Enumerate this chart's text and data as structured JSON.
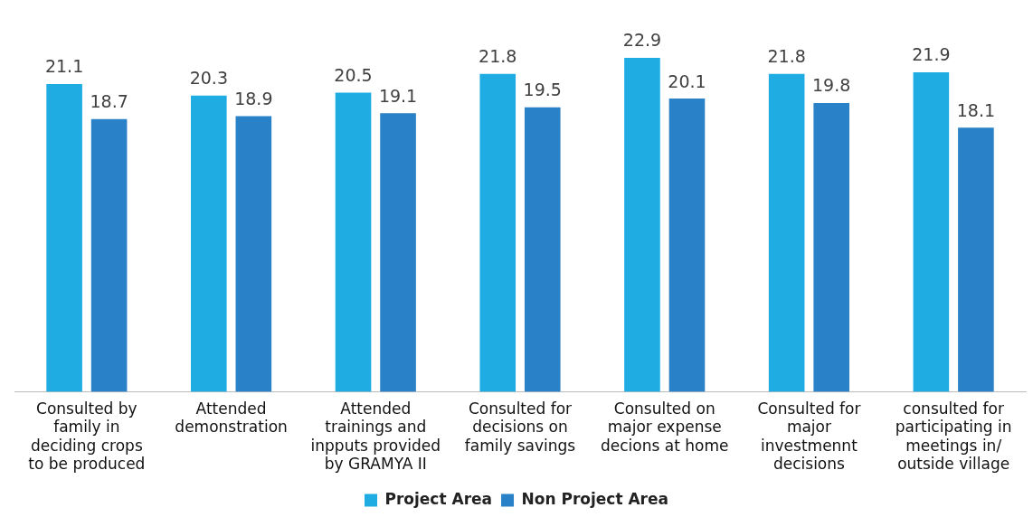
{
  "chart_data": {
    "type": "bar",
    "categories": [
      "Consulted by family in deciding crops to be produced",
      "Attended demonstration",
      "Attended trainings and inpputs provided by GRAMYA II",
      "Consulted for decisions on family savings",
      "Consulted on major expense decions at home",
      "Consulted for major investmennt decisions",
      "consulted for participating in meetings in/ outside village"
    ],
    "series": [
      {
        "name": "Project Area",
        "color": "#1eace3",
        "values": [
          21.1,
          20.3,
          20.5,
          21.8,
          22.9,
          21.8,
          21.9
        ]
      },
      {
        "name": "Non Project Area",
        "color": "#2981c7",
        "values": [
          18.7,
          18.9,
          19.1,
          19.5,
          20.1,
          19.8,
          18.1
        ]
      }
    ],
    "tick_labels": "x",
    "data_labels": true,
    "legend": "bottom",
    "grid": false
  }
}
